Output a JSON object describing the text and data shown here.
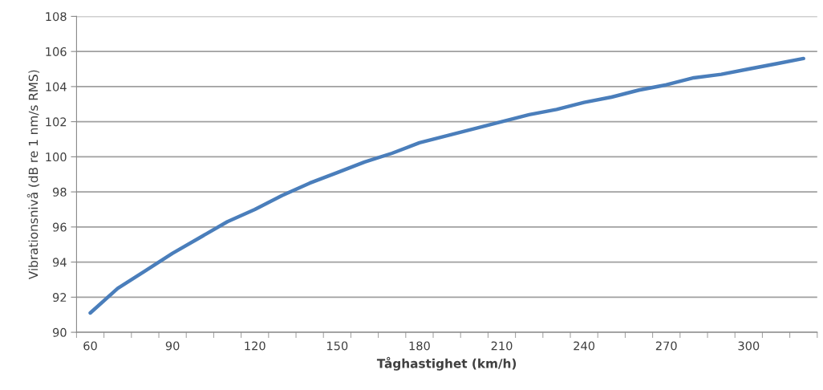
{
  "chart_data": {
    "type": "line",
    "xlabel": "Tåghastighet (km/h)",
    "ylabel": "Vibrationsnivå (dB re 1 nm/s RMS)",
    "categories": [
      "60",
      null,
      null,
      "90",
      null,
      null,
      "120",
      null,
      null,
      "150",
      null,
      null,
      "180",
      null,
      null,
      "210",
      null,
      null,
      "240",
      null,
      null,
      "270",
      null,
      null,
      "300",
      null,
      null
    ],
    "series": [
      {
        "color": "#4a7ebb",
        "values": [
          91.1,
          92.5,
          93.5,
          94.5,
          95.4,
          96.3,
          97.0,
          97.8,
          98.5,
          99.1,
          99.7,
          100.2,
          100.8,
          101.2,
          101.6,
          102.0,
          102.4,
          102.7,
          103.1,
          103.4,
          103.8,
          104.1,
          104.5,
          104.7,
          105.0,
          105.3,
          105.6
        ]
      }
    ],
    "ylim": [
      90,
      108
    ],
    "yticks": [
      90,
      92,
      94,
      96,
      98,
      100,
      102,
      104,
      106,
      108
    ],
    "grid": "y",
    "legend": false,
    "marker": "none",
    "line_style": "solid"
  }
}
